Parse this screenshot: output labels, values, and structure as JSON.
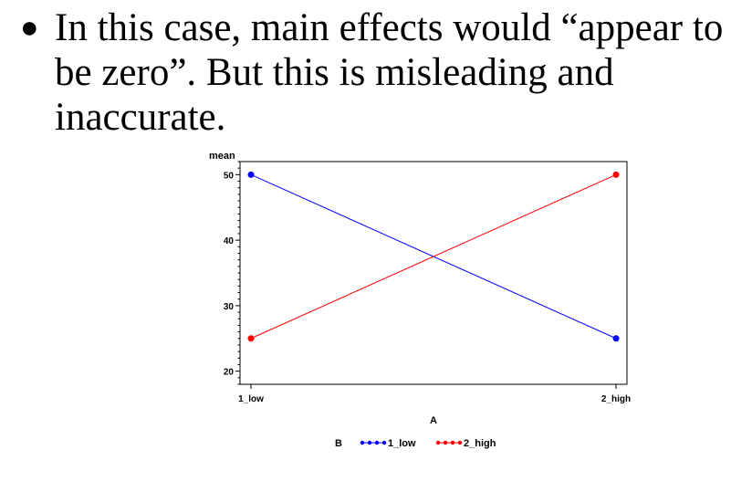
{
  "slide": {
    "bullet_text": "In this case, main effects would “appear to be zero”.  But this is misleading and inaccurate."
  },
  "colors": {
    "series_low": "#0000ff",
    "series_high": "#ff0000"
  },
  "chart_data": {
    "type": "line",
    "title": "",
    "xlabel": "A",
    "ylabel": "mean",
    "categories": [
      "1_low",
      "2_high"
    ],
    "ylim": [
      18,
      52
    ],
    "yticks": [
      20,
      30,
      40,
      50
    ],
    "grid": false,
    "legend": {
      "title": "B",
      "placement": "bottom"
    },
    "series": [
      {
        "name": "1_low",
        "values": [
          50,
          25
        ],
        "color": "#0000ff"
      },
      {
        "name": "2_high",
        "values": [
          25,
          50
        ],
        "color": "#ff0000"
      }
    ]
  }
}
